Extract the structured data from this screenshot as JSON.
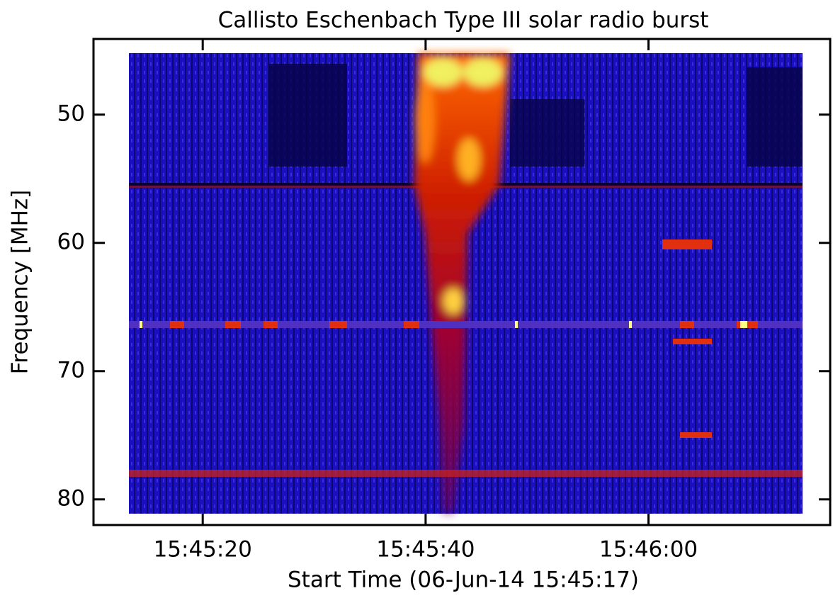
{
  "chart_data": {
    "type": "spectrogram",
    "title": "Callisto Eschenbach Type III solar radio burst",
    "xlabel": "Start Time (06-Jun-14 15:45:17)",
    "ylabel": "Frequency [MHz]",
    "xlim": [
      10.2,
      76.3
    ],
    "xticks": [
      {
        "value": 20,
        "label": "15:45:20"
      },
      {
        "value": 40,
        "label": "15:45:40"
      },
      {
        "value": 60,
        "label": "15:46:00"
      }
    ],
    "ylim": [
      44.1,
      82
    ],
    "yticks": [
      50,
      60,
      70,
      80
    ],
    "y_inverted": true
  }
}
